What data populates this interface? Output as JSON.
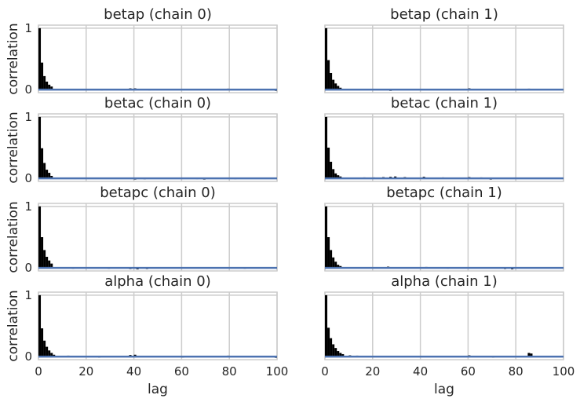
{
  "chart_data": {
    "type": "bar",
    "figure": "autocorrelation plot grid",
    "rows": 4,
    "cols": 2,
    "xlabel": "lag",
    "ylabel": "correlation",
    "xlim": [
      0,
      100
    ],
    "ylim": [
      -0.05,
      1.05
    ],
    "xticks": [
      0,
      20,
      40,
      60,
      80,
      100
    ],
    "yticks": [
      0,
      1
    ],
    "grid": true,
    "zero_line_color": "#4c72b0",
    "bar_color": "#000000",
    "grid_color": "#cccccc",
    "panels": [
      {
        "title": "betap (chain 0)",
        "row": 0,
        "col": 0,
        "acf": [
          1.0,
          0.44,
          0.22,
          0.13,
          0.08,
          0.05
        ],
        "noise": [
          [
            26,
            -0.01
          ],
          [
            38,
            0.02
          ],
          [
            40,
            0.02
          ],
          [
            46,
            -0.01
          ],
          [
            79,
            0.015
          ],
          [
            99,
            -0.02
          ]
        ]
      },
      {
        "title": "betap (chain 1)",
        "row": 0,
        "col": 1,
        "acf": [
          1.0,
          0.48,
          0.27,
          0.16,
          0.1,
          0.06,
          0.03
        ],
        "noise": [
          [
            27,
            -0.02
          ],
          [
            46,
            0.01
          ],
          [
            60,
            0.02
          ],
          [
            85,
            0.015
          ]
        ]
      },
      {
        "title": "betac (chain 0)",
        "row": 1,
        "col": 0,
        "acf": [
          1.0,
          0.49,
          0.25,
          0.14,
          0.09,
          0.04
        ],
        "noise": [
          [
            40,
            -0.02
          ],
          [
            44,
            -0.015
          ],
          [
            66,
            -0.01
          ],
          [
            69,
            -0.02
          ],
          [
            82,
            -0.01
          ]
        ]
      },
      {
        "title": "betac (chain 1)",
        "row": 1,
        "col": 1,
        "acf": [
          1.0,
          0.5,
          0.27,
          0.15,
          0.08,
          0.05,
          0.03
        ],
        "noise": [
          [
            16,
            0.015
          ],
          [
            20,
            0.015
          ],
          [
            24,
            0.02
          ],
          [
            27,
            0.025
          ],
          [
            29,
            0.03
          ],
          [
            33,
            0.02
          ],
          [
            41,
            0.025
          ],
          [
            49,
            0.015
          ],
          [
            60,
            0.02
          ],
          [
            65,
            0.015
          ],
          [
            69,
            -0.02
          ]
        ]
      },
      {
        "title": "betapc (chain 0)",
        "row": 2,
        "col": 0,
        "acf": [
          1.0,
          0.5,
          0.29,
          0.18,
          0.12,
          0.07
        ],
        "noise": [
          [
            14,
            -0.015
          ],
          [
            29,
            -0.015
          ],
          [
            38,
            -0.02
          ],
          [
            41,
            -0.025
          ],
          [
            45,
            -0.02
          ],
          [
            86,
            -0.015
          ]
        ]
      },
      {
        "title": "betapc (chain 1)",
        "row": 2,
        "col": 1,
        "acf": [
          1.0,
          0.5,
          0.29,
          0.17,
          0.1,
          0.05,
          0.03
        ],
        "noise": [
          [
            26,
            0.02
          ],
          [
            42,
            0.015
          ],
          [
            51,
            -0.01
          ],
          [
            75,
            -0.02
          ],
          [
            78,
            -0.025
          ]
        ]
      },
      {
        "title": "alpha (chain 0)",
        "row": 3,
        "col": 0,
        "acf": [
          1.0,
          0.46,
          0.26,
          0.16,
          0.1,
          0.06,
          0.03
        ],
        "noise": [
          [
            12,
            0.015
          ],
          [
            25,
            -0.015
          ],
          [
            38,
            0.025
          ],
          [
            40,
            0.03
          ],
          [
            60,
            -0.015
          ],
          [
            79,
            0.015
          ],
          [
            99,
            -0.02
          ]
        ]
      },
      {
        "title": "alpha (chain 1)",
        "row": 3,
        "col": 1,
        "acf": [
          1.0,
          0.47,
          0.3,
          0.2,
          0.14,
          0.09,
          0.06,
          0.04
        ],
        "noise": [
          [
            10,
            0.02
          ],
          [
            13,
            0.015
          ],
          [
            60,
            0.02
          ],
          [
            70,
            -0.015
          ],
          [
            85,
            0.06
          ],
          [
            86,
            0.05
          ]
        ]
      }
    ]
  }
}
